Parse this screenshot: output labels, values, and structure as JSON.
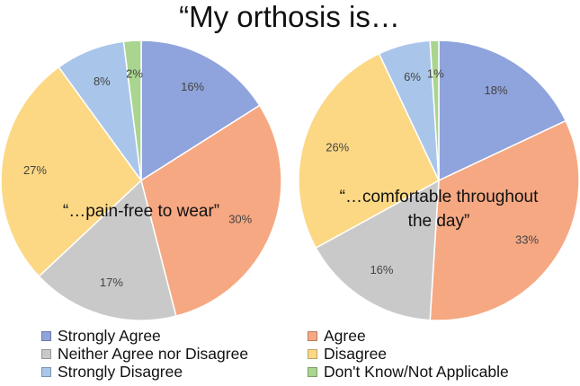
{
  "title": "“My orthosis is…",
  "chart_data": [
    {
      "type": "pie",
      "subtitle": "“…pain-free to wear”",
      "categories": [
        "Strongly Agree",
        "Agree",
        "Neither Agree nor Disagree",
        "Disagree",
        "Strongly Disagree",
        "Don't Know/Not Applicable"
      ],
      "values": [
        16,
        30,
        17,
        27,
        8,
        2
      ],
      "labels": [
        "16%",
        "30%",
        "17%",
        "27%",
        "8%",
        "2%"
      ]
    },
    {
      "type": "pie",
      "subtitle": "“…comfortable throughout the day”",
      "subtitle_lines": [
        "“…comfortable throughout",
        "the day”"
      ],
      "categories": [
        "Strongly Agree",
        "Agree",
        "Neither Agree nor Disagree",
        "Disagree",
        "Strongly Disagree",
        "Don't Know/Not Applicable"
      ],
      "values": [
        18,
        33,
        16,
        26,
        6,
        1
      ],
      "labels": [
        "18%",
        "33%",
        "16%",
        "26%",
        "6%",
        "1%"
      ]
    }
  ],
  "colors": [
    "#8FA3DC",
    "#F6A882",
    "#C9C9C9",
    "#FCD884",
    "#A9C6EA",
    "#A9D58E"
  ],
  "legend": {
    "placement": "bottom",
    "items": [
      {
        "label": "Strongly Agree",
        "color": "#8FA3DC"
      },
      {
        "label": "Agree",
        "color": "#F6A882"
      },
      {
        "label": "Neither Agree nor Disagree",
        "color": "#C9C9C9"
      },
      {
        "label": "Disagree",
        "color": "#FCD884"
      },
      {
        "label": "Strongly Disagree",
        "color": "#A9C6EA"
      },
      {
        "label": "Don't Know/Not Applicable",
        "color": "#A9D58E"
      }
    ]
  }
}
